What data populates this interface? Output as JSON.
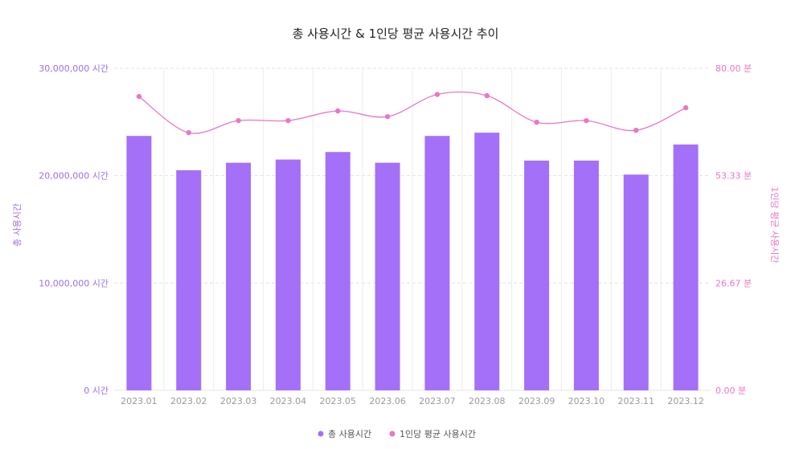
{
  "chart_data": {
    "type": "bar+line",
    "title": "총 사용시간 & 1인당 평균 사용시간 추이",
    "categories": [
      "2023.01",
      "2023.02",
      "2023.03",
      "2023.04",
      "2023.05",
      "2023.06",
      "2023.07",
      "2023.08",
      "2023.09",
      "2023.10",
      "2023.11",
      "2023.12"
    ],
    "y_left": {
      "label": "총 사용시간",
      "range": [
        0,
        30000000
      ],
      "ticks": [
        "0 시간",
        "10,000,000 시간",
        "20,000,000 시간",
        "30,000,000 시간"
      ]
    },
    "y_right": {
      "label": "1인당 평균 사용시간",
      "range": [
        0,
        80
      ],
      "ticks": [
        "0.00 분",
        "26.67 분",
        "53.33 분",
        "80.00 분"
      ]
    },
    "series": [
      {
        "name": "총 사용시간",
        "type": "bar",
        "axis": "left",
        "color": "#a470f7",
        "values": [
          23700000,
          20500000,
          21200000,
          21500000,
          22200000,
          21200000,
          23700000,
          24000000,
          21400000,
          21400000,
          20100000,
          22900000
        ]
      },
      {
        "name": "1인당 평균 사용시간",
        "type": "line",
        "axis": "right",
        "color": "#e877c5",
        "values": [
          73.0,
          64.0,
          67.0,
          67.0,
          69.4,
          68.0,
          73.5,
          73.2,
          66.6,
          67.0,
          64.6,
          70.2
        ]
      }
    ],
    "legend_position": "bottom-center",
    "grid": true
  }
}
